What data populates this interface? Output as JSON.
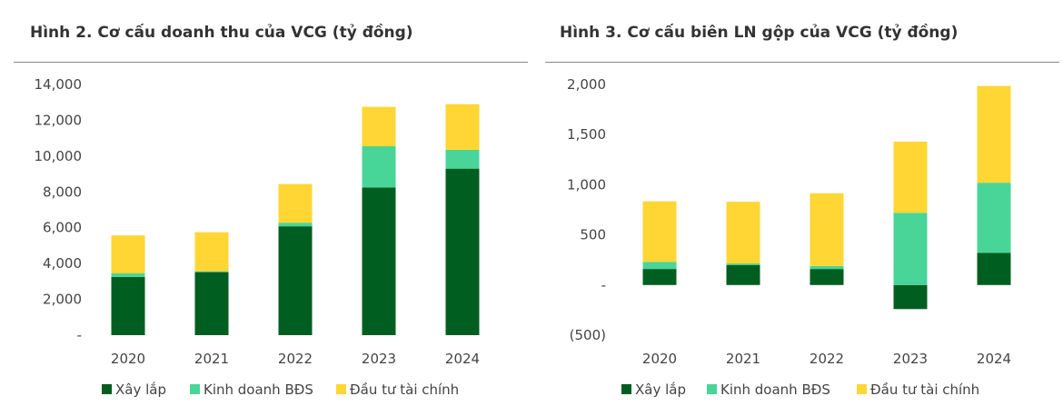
{
  "colors": {
    "xay_lap": "#005e20",
    "kinh_doanh_bds": "#48d597",
    "dau_tu_tai_chinh": "#ffd633"
  },
  "chart_data": [
    {
      "type": "bar",
      "stacked": true,
      "title": "Hình 2. Cơ cấu doanh thu của VCG (tỷ đồng)",
      "categories": [
        "2020",
        "2021",
        "2022",
        "2023",
        "2024"
      ],
      "series": [
        {
          "name": "Xây lắp",
          "values": [
            3250,
            3520,
            6080,
            8250,
            9300
          ]
        },
        {
          "name": "Kinh doanh BĐS",
          "values": [
            200,
            50,
            200,
            2300,
            1050
          ]
        },
        {
          "name": "Đầu tư tài chính",
          "values": [
            2120,
            2180,
            2160,
            2200,
            2550
          ]
        }
      ],
      "ylim": [
        0,
        14000
      ],
      "yticks": [
        0,
        2000,
        4000,
        6000,
        8000,
        10000,
        12000,
        14000
      ],
      "ytick_labels": [
        "-",
        "2,000",
        "4,000",
        "6,000",
        "8,000",
        "10,000",
        "12,000",
        "14,000"
      ],
      "grid": false,
      "legend": "bottom"
    },
    {
      "type": "bar",
      "stacked": true,
      "title": "Hình 3. Cơ cấu biên LN gộp của VCG (tỷ đồng)",
      "categories": [
        "2020",
        "2021",
        "2022",
        "2023",
        "2024"
      ],
      "series": [
        {
          "name": "Xây lắp",
          "values": [
            160,
            200,
            160,
            -240,
            320
          ]
        },
        {
          "name": "Kinh doanh BĐS",
          "values": [
            70,
            15,
            30,
            720,
            700
          ]
        },
        {
          "name": "Đầu tư tài chính",
          "values": [
            605,
            615,
            725,
            710,
            965
          ]
        }
      ],
      "ylim": [
        -500,
        2000
      ],
      "yticks": [
        -500,
        0,
        500,
        1000,
        1500,
        2000
      ],
      "ytick_labels": [
        "(500)",
        "-",
        "500",
        "1,000",
        "1,500",
        "2,000"
      ],
      "grid": false,
      "legend": "bottom"
    }
  ]
}
